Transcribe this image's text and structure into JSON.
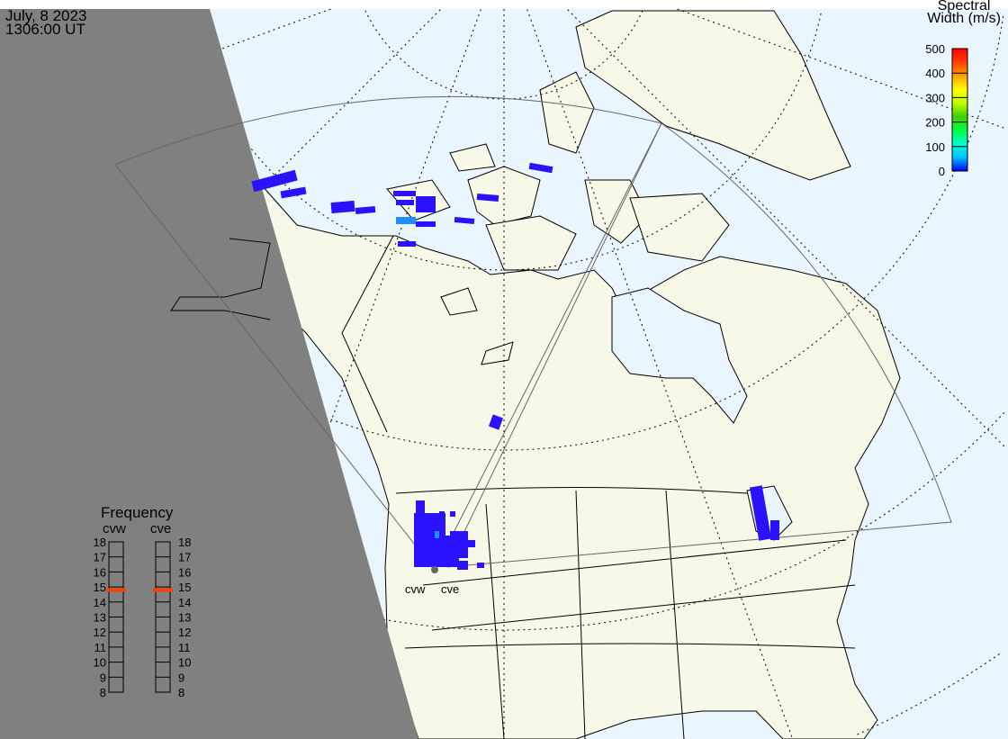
{
  "header": {
    "date": "July, 8 2023",
    "time": "1306:00 UT"
  },
  "colorbar": {
    "title_line1": "Spectral",
    "title_line2": "Width (m/s)",
    "ticks": [
      "500",
      "400",
      "300",
      "200",
      "100",
      "0"
    ],
    "range": [
      0,
      500
    ],
    "colors": [
      "#0000ff",
      "#00c0ff",
      "#00ffd0",
      "#00ff40",
      "#40d000",
      "#c0ff00",
      "#ffff00",
      "#ffa000",
      "#ff4000",
      "#ff0000"
    ]
  },
  "frequency": {
    "title": "Frequency",
    "radars": [
      {
        "name": "cvw",
        "value_mhz": 14.8
      },
      {
        "name": "cve",
        "value_mhz": 14.8
      }
    ],
    "ticks": [
      "18",
      "17",
      "16",
      "15",
      "14",
      "13",
      "12",
      "11",
      "10",
      "9",
      "8"
    ],
    "marker_color": "#ff4000"
  },
  "map": {
    "site_labels": [
      "cvw",
      "cve"
    ],
    "colors": {
      "ocean": "#eaf6fd",
      "land": "#f8f8e8",
      "night": "#808080",
      "echo_low": "#2a12ff",
      "echo_mid": "#1e90ff"
    }
  }
}
